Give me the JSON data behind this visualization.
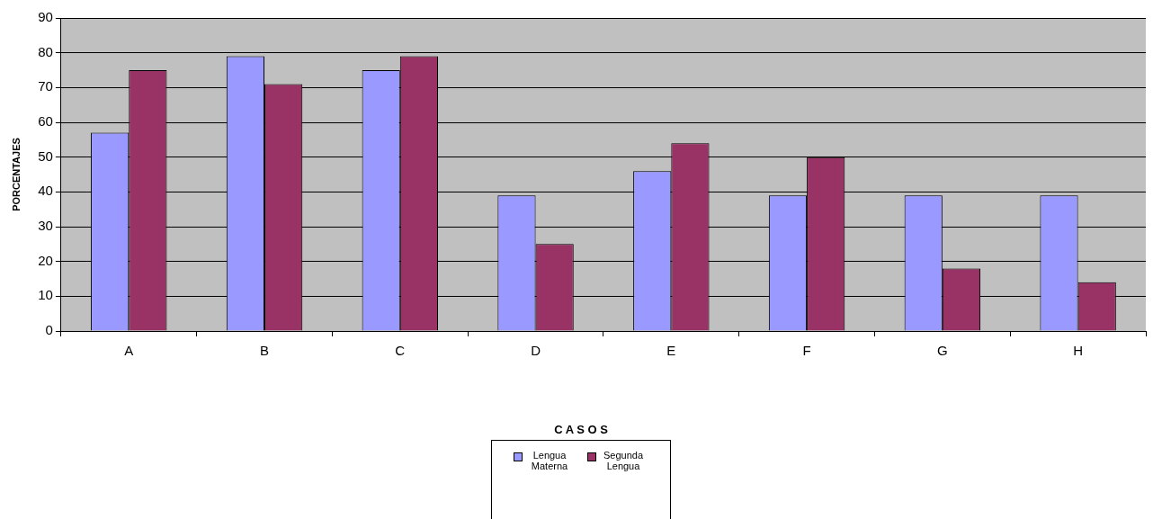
{
  "chart_data": {
    "type": "bar",
    "legend_title": "C A S O S",
    "ylabel": "PORCENTAJES",
    "categories": [
      "A",
      "B",
      "C",
      "D",
      "E",
      "F",
      "G",
      "H"
    ],
    "series": [
      {
        "name": "Lengua Materna",
        "color": "#9999ff",
        "values": [
          57,
          79,
          75,
          39,
          46,
          39,
          39,
          39
        ]
      },
      {
        "name": "Segunda Lengua",
        "color": "#993366",
        "values": [
          75,
          71,
          79,
          25,
          54,
          50,
          18,
          14
        ]
      }
    ],
    "ylim": [
      0,
      90
    ],
    "yticks": [
      0,
      10,
      20,
      30,
      40,
      50,
      60,
      70,
      80,
      90
    ],
    "grid": "y",
    "legend": "bottom"
  }
}
